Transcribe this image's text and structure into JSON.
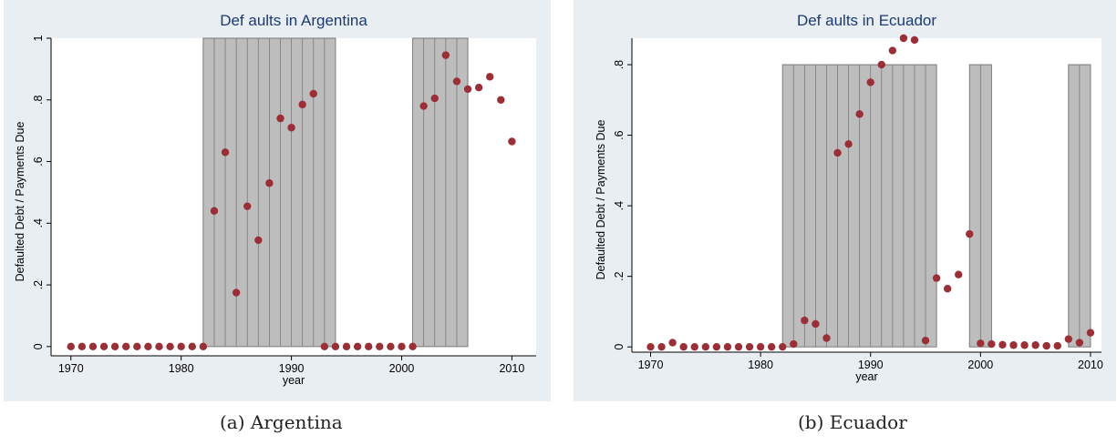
{
  "colors": {
    "outer_bg": "#e8eef2",
    "plot_bg": "#ffffff",
    "band_fill": "#bdbdbd",
    "band_line": "#7a7a7a",
    "marker": "#9a2f37",
    "title": "#1d3a73"
  },
  "chart_data": [
    {
      "type": "scatter",
      "title": "Def aults in Argentina",
      "xlabel": "year",
      "ylabel": "Defaulted Debt / Payments Due",
      "xlim": [
        1968.2,
        2012.2
      ],
      "ylim": [
        -0.03,
        1.0
      ],
      "xticks": [
        1970,
        1980,
        1990,
        2000,
        2010
      ],
      "xtick_labels": [
        "1970",
        "1980",
        "1990",
        "2000",
        "2010"
      ],
      "yticks": [
        0,
        0.2,
        0.4,
        0.6,
        0.8,
        1
      ],
      "ytick_labels": [
        "0",
        ".2",
        ".4",
        ".6",
        ".8",
        "1"
      ],
      "grid": false,
      "default_bands": [
        {
          "start": 1982,
          "end": 1994
        },
        {
          "start": 2001,
          "end": 2006
        }
      ],
      "x": [
        1970,
        1971,
        1972,
        1973,
        1974,
        1975,
        1976,
        1977,
        1978,
        1979,
        1980,
        1981,
        1982,
        1983,
        1984,
        1985,
        1986,
        1987,
        1988,
        1989,
        1990,
        1991,
        1992,
        1993,
        1994,
        1995,
        1996,
        1997,
        1998,
        1999,
        2000,
        2001,
        2002,
        2003,
        2004,
        2005,
        2006,
        2007,
        2008,
        2009,
        2010
      ],
      "y": [
        0,
        0,
        0,
        0,
        0,
        0,
        0,
        0,
        0,
        0,
        0,
        0,
        0,
        0.44,
        0.63,
        0.175,
        0.455,
        0.345,
        0.53,
        0.74,
        0.71,
        0.785,
        0.82,
        0,
        0,
        0,
        0,
        0,
        0,
        0,
        0,
        0,
        0.78,
        0.805,
        0.945,
        0.86,
        0.835,
        0.84,
        0.875,
        0.8,
        0.665
      ]
    },
    {
      "type": "scatter",
      "title": "Def aults in Ecuador",
      "xlabel": "year",
      "ylabel": "Defaulted Debt / Payments Due",
      "xlim": [
        1968.3,
        2011.0
      ],
      "ylim": [
        -0.015,
        0.875
      ],
      "xticks": [
        1970,
        1980,
        1990,
        2000,
        2010
      ],
      "xtick_labels": [
        "1970",
        "1980",
        "1990",
        "2000",
        "2010"
      ],
      "yticks": [
        0,
        0.2,
        0.4,
        0.6,
        0.8
      ],
      "ytick_labels": [
        "0",
        ".2",
        ".4",
        ".6",
        ".8"
      ],
      "grid": false,
      "default_bands": [
        {
          "start": 1982,
          "end": 1996
        },
        {
          "start": 1999,
          "end": 2001
        },
        {
          "start": 2008,
          "end": 2010
        }
      ],
      "x": [
        1970,
        1971,
        1972,
        1973,
        1974,
        1975,
        1976,
        1977,
        1978,
        1979,
        1980,
        1981,
        1982,
        1983,
        1984,
        1985,
        1986,
        1987,
        1988,
        1989,
        1990,
        1991,
        1992,
        1993,
        1994,
        1995,
        1996,
        1997,
        1998,
        1999,
        2000,
        2001,
        2002,
        2003,
        2004,
        2005,
        2006,
        2007,
        2008,
        2009,
        2010
      ],
      "y": [
        0,
        0,
        0.012,
        0,
        0,
        0,
        0,
        0,
        0,
        0,
        0,
        0,
        0,
        0.008,
        0.075,
        0.065,
        0.025,
        0.55,
        0.575,
        0.66,
        0.75,
        0.8,
        0.84,
        0.875,
        0.87,
        0.018,
        0.195,
        0.165,
        0.205,
        0.32,
        0.01,
        0.008,
        0.006,
        0.005,
        0.005,
        0.005,
        0.003,
        0.003,
        0.022,
        0.012,
        0.04
      ]
    }
  ],
  "captions": [
    "(a) Argentina",
    "(b) Ecuador"
  ]
}
